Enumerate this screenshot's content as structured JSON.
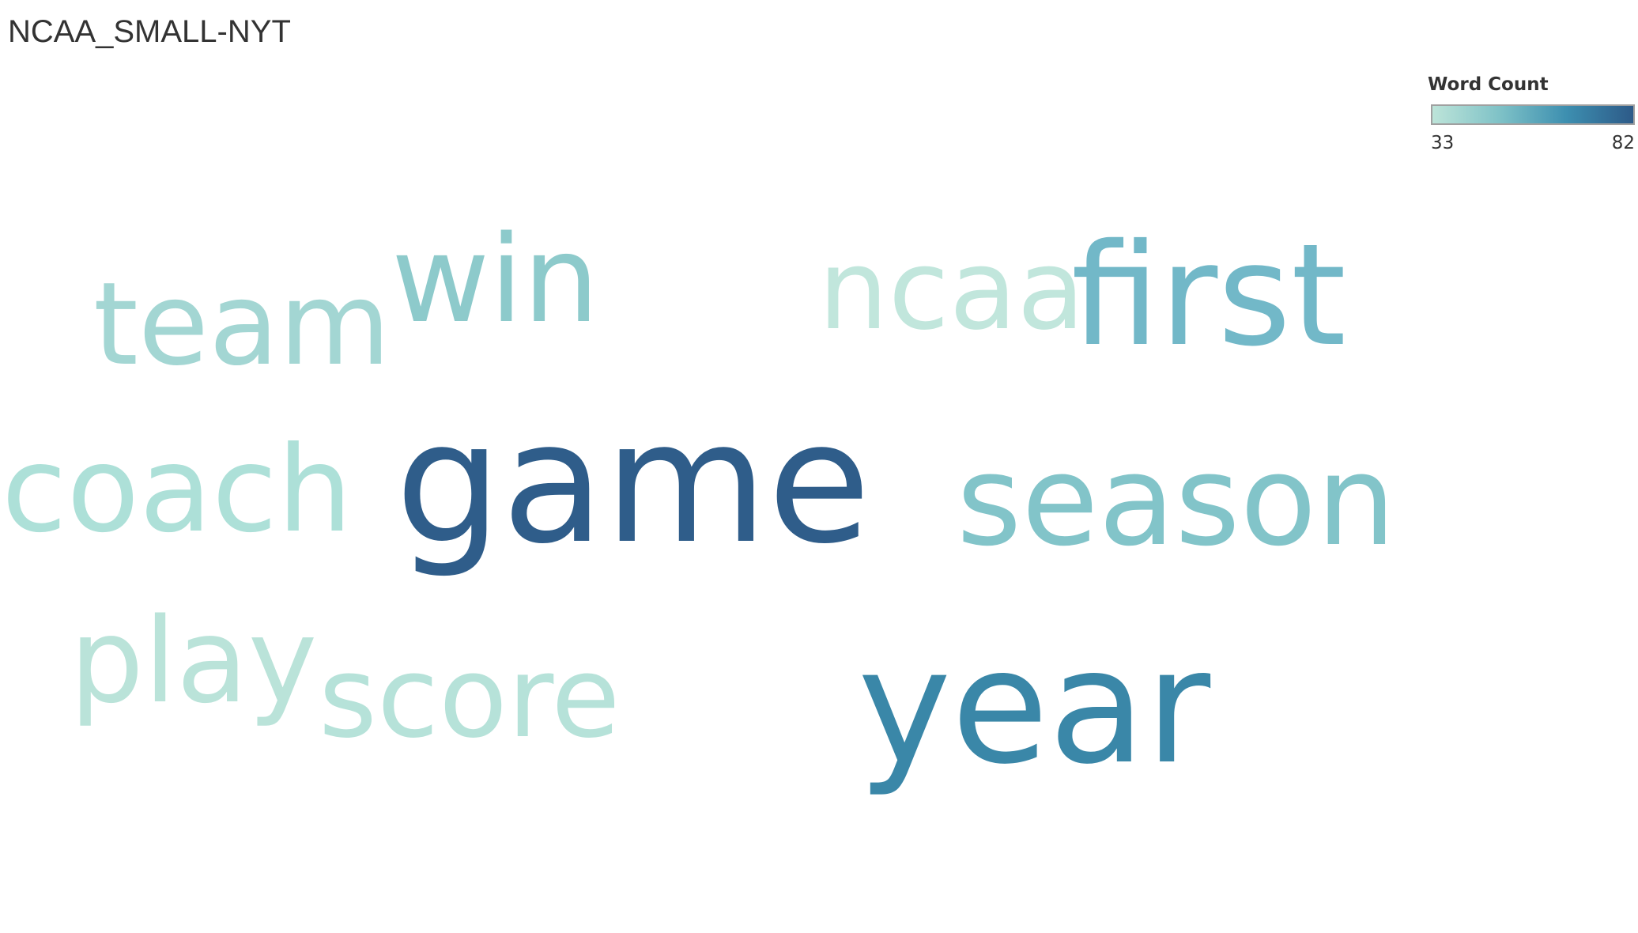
{
  "title": "NCAA_SMALL-NYT",
  "legend": {
    "title": "Word Count",
    "min_label": "33",
    "max_label": "82",
    "colors": [
      "#bde4d9",
      "#7fc2c7",
      "#3d8fb0",
      "#2d5a88"
    ]
  },
  "chart_data": {
    "type": "word-cloud",
    "title": "NCAA_SMALL-NYT",
    "color_legend": {
      "title": "Word Count",
      "min": 33,
      "max": 82
    },
    "words": [
      {
        "text": "game",
        "count": 82,
        "color": "#2f5d8a"
      },
      {
        "text": "year",
        "count": 70,
        "color": "#3a87a8"
      },
      {
        "text": "first",
        "count": 55,
        "color": "#72b8c8"
      },
      {
        "text": "season",
        "count": 50,
        "color": "#82c4c9"
      },
      {
        "text": "win",
        "count": 48,
        "color": "#8dcacb"
      },
      {
        "text": "team",
        "count": 42,
        "color": "#a3d6d3"
      },
      {
        "text": "coach",
        "count": 40,
        "color": "#ade0d8"
      },
      {
        "text": "score",
        "count": 37,
        "color": "#b6e2d9"
      },
      {
        "text": "play",
        "count": 35,
        "color": "#bae3d9"
      },
      {
        "text": "ncaa",
        "count": 33,
        "color": "#c1e6dc"
      }
    ]
  }
}
